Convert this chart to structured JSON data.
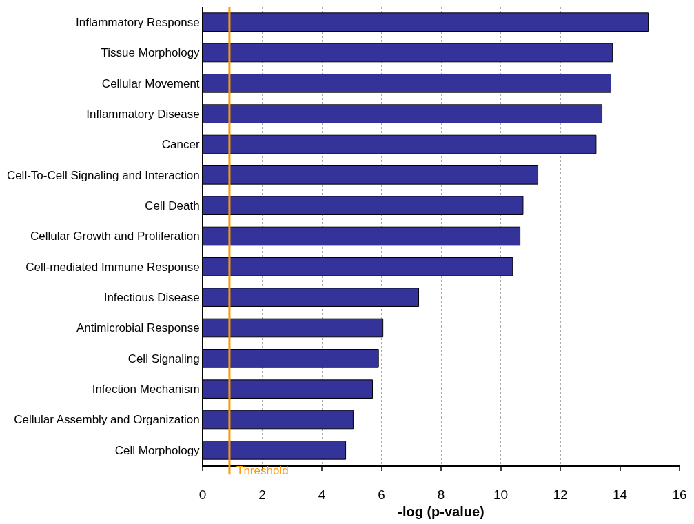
{
  "chart_data": {
    "type": "bar",
    "orientation": "horizontal",
    "xlabel": "-log (p-value)",
    "categories": [
      "Inflammatory Response",
      "Tissue Morphology",
      "Cellular Movement",
      "Inflammatory Disease",
      "Cancer",
      "Cell-To-Cell Signaling and Interaction",
      "Cell Death",
      "Cellular Growth and Proliferation",
      "Cell-mediated Immune Response",
      "Infectious Disease",
      "Antimicrobial Response",
      "Cell Signaling",
      "Infection Mechanism",
      "Cellular Assembly and Organization",
      "Cell Morphology"
    ],
    "values": [
      14.95,
      13.75,
      13.7,
      13.4,
      13.2,
      11.25,
      10.75,
      10.65,
      10.4,
      7.25,
      6.05,
      5.9,
      5.7,
      5.05,
      4.8
    ],
    "color": "#333399",
    "xlim": [
      0,
      16
    ],
    "xticks": [
      0,
      2,
      4,
      6,
      8,
      10,
      12,
      14,
      16
    ],
    "grid": "x",
    "ref_lines": [
      {
        "axis": "x",
        "value": 0.9,
        "label": "Threshold",
        "color": "#ff9900"
      }
    ]
  }
}
